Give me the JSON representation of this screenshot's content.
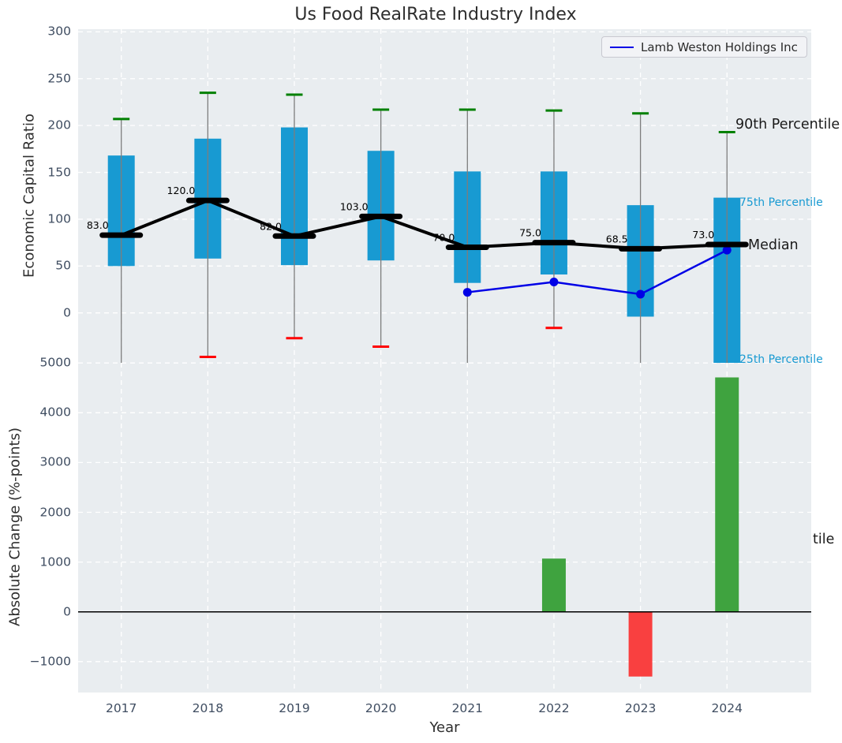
{
  "title": "Us Food RealRate Industry Index",
  "axes": {
    "top_ylabel": "Economic Capital Ratio",
    "bottom_ylabel": "Absolute Change (%-points)",
    "xlabel": "Year"
  },
  "legend": {
    "label": "Lamb Weston Holdings Inc",
    "position": "upper right"
  },
  "annotations": {
    "p90": "90th Percentile",
    "p75": "75th Percentile",
    "median": "Median",
    "p25": "25th Percentile",
    "clipped_fragment": "tile"
  },
  "colors": {
    "panel_bg": "#e9edf0",
    "grid": "#ffffff",
    "box": "#189ad2",
    "whisker": "#7d7d7d",
    "cap_90th": "#008000",
    "cap_10th": "#ff0000",
    "median": "#000000",
    "company_line": "#0000e6",
    "bar_positive": "#3fa33f",
    "bar_negative": "#f94040",
    "zero_line": "#000000",
    "tick_text": "#3f4d61",
    "annotation_cyan": "#189ad2"
  },
  "chart_data": [
    {
      "type": "boxplot",
      "panel": "top",
      "title": "Us Food RealRate Industry Index",
      "ylabel": "Economic Capital Ratio",
      "xlabel": "",
      "categories": [
        "2017",
        "2018",
        "2019",
        "2020",
        "2021",
        "2022",
        "2023",
        "2024"
      ],
      "yticks": [
        0,
        50,
        100,
        150,
        200,
        250,
        300
      ],
      "ytick_labels": [
        "0",
        "50",
        "100",
        "150",
        "200",
        "250",
        "300"
      ],
      "ylim": [
        -53,
        303
      ],
      "grid": true,
      "series": [
        {
          "name": "90th Percentile",
          "values": [
            207,
            235,
            233,
            217,
            217,
            216,
            213,
            193
          ]
        },
        {
          "name": "75th Percentile",
          "values": [
            168,
            186,
            198,
            173,
            151,
            151,
            115,
            123
          ]
        },
        {
          "name": "Median",
          "values": [
            83.0,
            120.0,
            82.0,
            103.0,
            70.0,
            75.0,
            68.5,
            73.0
          ]
        },
        {
          "name": "25th Percentile",
          "values": [
            50,
            58,
            51,
            56,
            32,
            41,
            -4,
            null
          ]
        },
        {
          "name": "10th Percentile",
          "values": [
            null,
            -47,
            -27,
            -36,
            null,
            -16,
            null,
            null
          ]
        },
        {
          "name": "Lamb Weston Holdings Inc",
          "values": [
            null,
            null,
            null,
            null,
            22,
            33,
            20,
            67
          ]
        }
      ],
      "median_labels": [
        "83.0",
        "120.0",
        "82.0",
        "103.0",
        "70.0",
        "75.0",
        "68.5",
        "73.0"
      ],
      "legend_entries": [
        "Lamb Weston Holdings Inc"
      ],
      "right_labels": [
        "90th Percentile",
        "75th Percentile",
        "Median",
        "25th Percentile",
        "tile"
      ]
    },
    {
      "type": "bar",
      "panel": "bottom",
      "ylabel": "Absolute Change (%-points)",
      "xlabel": "Year",
      "categories": [
        "2017",
        "2018",
        "2019",
        "2020",
        "2021",
        "2022",
        "2023",
        "2024"
      ],
      "values": [
        null,
        null,
        null,
        null,
        null,
        1070,
        -1300,
        4710
      ],
      "yticks": [
        5000,
        4000,
        3000,
        2000,
        1000,
        0,
        -1000
      ],
      "ytick_labels": [
        "5000",
        "4000",
        "3000",
        "2000",
        "1000",
        "0",
        "−1000"
      ],
      "ylim": [
        -1620,
        5000
      ],
      "grid": true
    }
  ]
}
